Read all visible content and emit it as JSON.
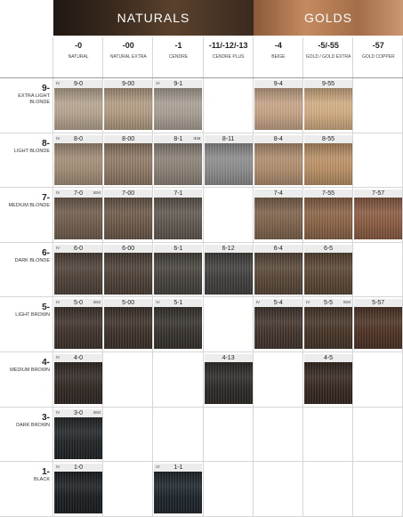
{
  "groups": {
    "naturals": "NATURALS",
    "golds": "GOLDS"
  },
  "columns": [
    {
      "code": "-0",
      "name": "NATURAL"
    },
    {
      "code": "-00",
      "name": "NATURAL EXTRA"
    },
    {
      "code": "-1",
      "name": "CENDRE"
    },
    {
      "code": "-11/-12/-13",
      "name": "CENDRE PLUS"
    },
    {
      "code": "-4",
      "name": "BEIGE"
    },
    {
      "code": "-5/-55",
      "name": "GOLD / GOLD EXTRA"
    },
    {
      "code": "-57",
      "name": "GOLD COPPER"
    }
  ],
  "rows": [
    {
      "num": "9-",
      "name": "EXTRA LIGHT BLONDE",
      "swatches": [
        {
          "col": 0,
          "code": "9-0",
          "iv": true,
          "iem": false,
          "color": "#b8a58f"
        },
        {
          "col": 1,
          "code": "9-00",
          "iv": false,
          "iem": false,
          "color": "#b39c82"
        },
        {
          "col": 2,
          "code": "9-1",
          "iv": true,
          "iem": false,
          "color": "#aaa094"
        },
        {
          "col": 4,
          "code": "9-4",
          "iv": false,
          "iem": false,
          "color": "#c7a485"
        },
        {
          "col": 5,
          "code": "9-55",
          "iv": false,
          "iem": false,
          "color": "#d3ad82"
        }
      ]
    },
    {
      "num": "8-",
      "name": "LIGHT BLONDE",
      "swatches": [
        {
          "col": 0,
          "code": "8-0",
          "iv": true,
          "iem": false,
          "color": "#a38d75"
        },
        {
          "col": 1,
          "code": "8-00",
          "iv": false,
          "iem": false,
          "color": "#8f7863"
        },
        {
          "col": 2,
          "code": "8-1",
          "iv": false,
          "iem": true,
          "color": "#8b8176"
        },
        {
          "col": 3,
          "code": "8-11",
          "iv": false,
          "iem": false,
          "color": "#8d8d8d"
        },
        {
          "col": 4,
          "code": "8-4",
          "iv": false,
          "iem": false,
          "color": "#b08d6d"
        },
        {
          "col": 5,
          "code": "8-55",
          "iv": false,
          "iem": false,
          "color": "#bb9064"
        }
      ]
    },
    {
      "num": "7-",
      "name": "MEDIUM BLONDE",
      "swatches": [
        {
          "col": 0,
          "code": "7-0",
          "iv": true,
          "iem": true,
          "color": "#6f5c4b"
        },
        {
          "col": 1,
          "code": "7-00",
          "iv": false,
          "iem": false,
          "color": "#6b5847"
        },
        {
          "col": 2,
          "code": "7-1",
          "iv": false,
          "iem": false,
          "color": "#5f574e"
        },
        {
          "col": 4,
          "code": "7-4",
          "iv": false,
          "iem": false,
          "color": "#7e624a"
        },
        {
          "col": 5,
          "code": "7-55",
          "iv": false,
          "iem": false,
          "color": "#8a6244"
        },
        {
          "col": 6,
          "code": "7-57",
          "iv": false,
          "iem": false,
          "color": "#8a5a40"
        }
      ]
    },
    {
      "num": "6-",
      "name": "DARK BLONDE",
      "swatches": [
        {
          "col": 0,
          "code": "6-0",
          "iv": true,
          "iem": false,
          "color": "#4d4036"
        },
        {
          "col": 1,
          "code": "6-00",
          "iv": false,
          "iem": false,
          "color": "#4b3e34"
        },
        {
          "col": 2,
          "code": "6-1",
          "iv": false,
          "iem": false,
          "color": "#45403b"
        },
        {
          "col": 3,
          "code": "6-12",
          "iv": false,
          "iem": false,
          "color": "#3f3d3b"
        },
        {
          "col": 4,
          "code": "6-4",
          "iv": false,
          "iem": false,
          "color": "#574535"
        },
        {
          "col": 5,
          "code": "6-5",
          "iv": false,
          "iem": false,
          "color": "#584331"
        }
      ]
    },
    {
      "num": "5-",
      "name": "LIGHT BROWN",
      "swatches": [
        {
          "col": 0,
          "code": "5-0",
          "iv": true,
          "iem": true,
          "color": "#3d3029"
        },
        {
          "col": 1,
          "code": "5-00",
          "iv": false,
          "iem": false,
          "color": "#3b2f27"
        },
        {
          "col": 2,
          "code": "5-1",
          "iv": true,
          "iem": false,
          "color": "#35302b"
        },
        {
          "col": 4,
          "code": "5-4",
          "iv": true,
          "iem": false,
          "color": "#41322a"
        },
        {
          "col": 5,
          "code": "5-5",
          "iv": true,
          "iem": true,
          "color": "#453325"
        },
        {
          "col": 6,
          "code": "5-57",
          "iv": false,
          "iem": false,
          "color": "#4c3022"
        }
      ]
    },
    {
      "num": "4-",
      "name": "MEDIUM BROWN",
      "swatches": [
        {
          "col": 0,
          "code": "4-0",
          "iv": true,
          "iem": false,
          "color": "#2e2520"
        },
        {
          "col": 3,
          "code": "4-13",
          "iv": false,
          "iem": false,
          "color": "#2a2623"
        },
        {
          "col": 5,
          "code": "4-5",
          "iv": false,
          "iem": false,
          "color": "#33251d"
        }
      ]
    },
    {
      "num": "3-",
      "name": "DARK BROWN",
      "swatches": [
        {
          "col": 0,
          "code": "3-0",
          "iv": true,
          "iem": true,
          "color": "#1e2224"
        }
      ]
    },
    {
      "num": "1-",
      "name": "BLACK",
      "swatches": [
        {
          "col": 0,
          "code": "1-0",
          "iv": true,
          "iem": false,
          "color": "#171b1e"
        },
        {
          "col": 2,
          "code": "1-1",
          "iv": true,
          "iem": false,
          "color": "#1a2228"
        }
      ]
    }
  ],
  "tags": {
    "iv": "IV",
    "iem": "IEM"
  }
}
